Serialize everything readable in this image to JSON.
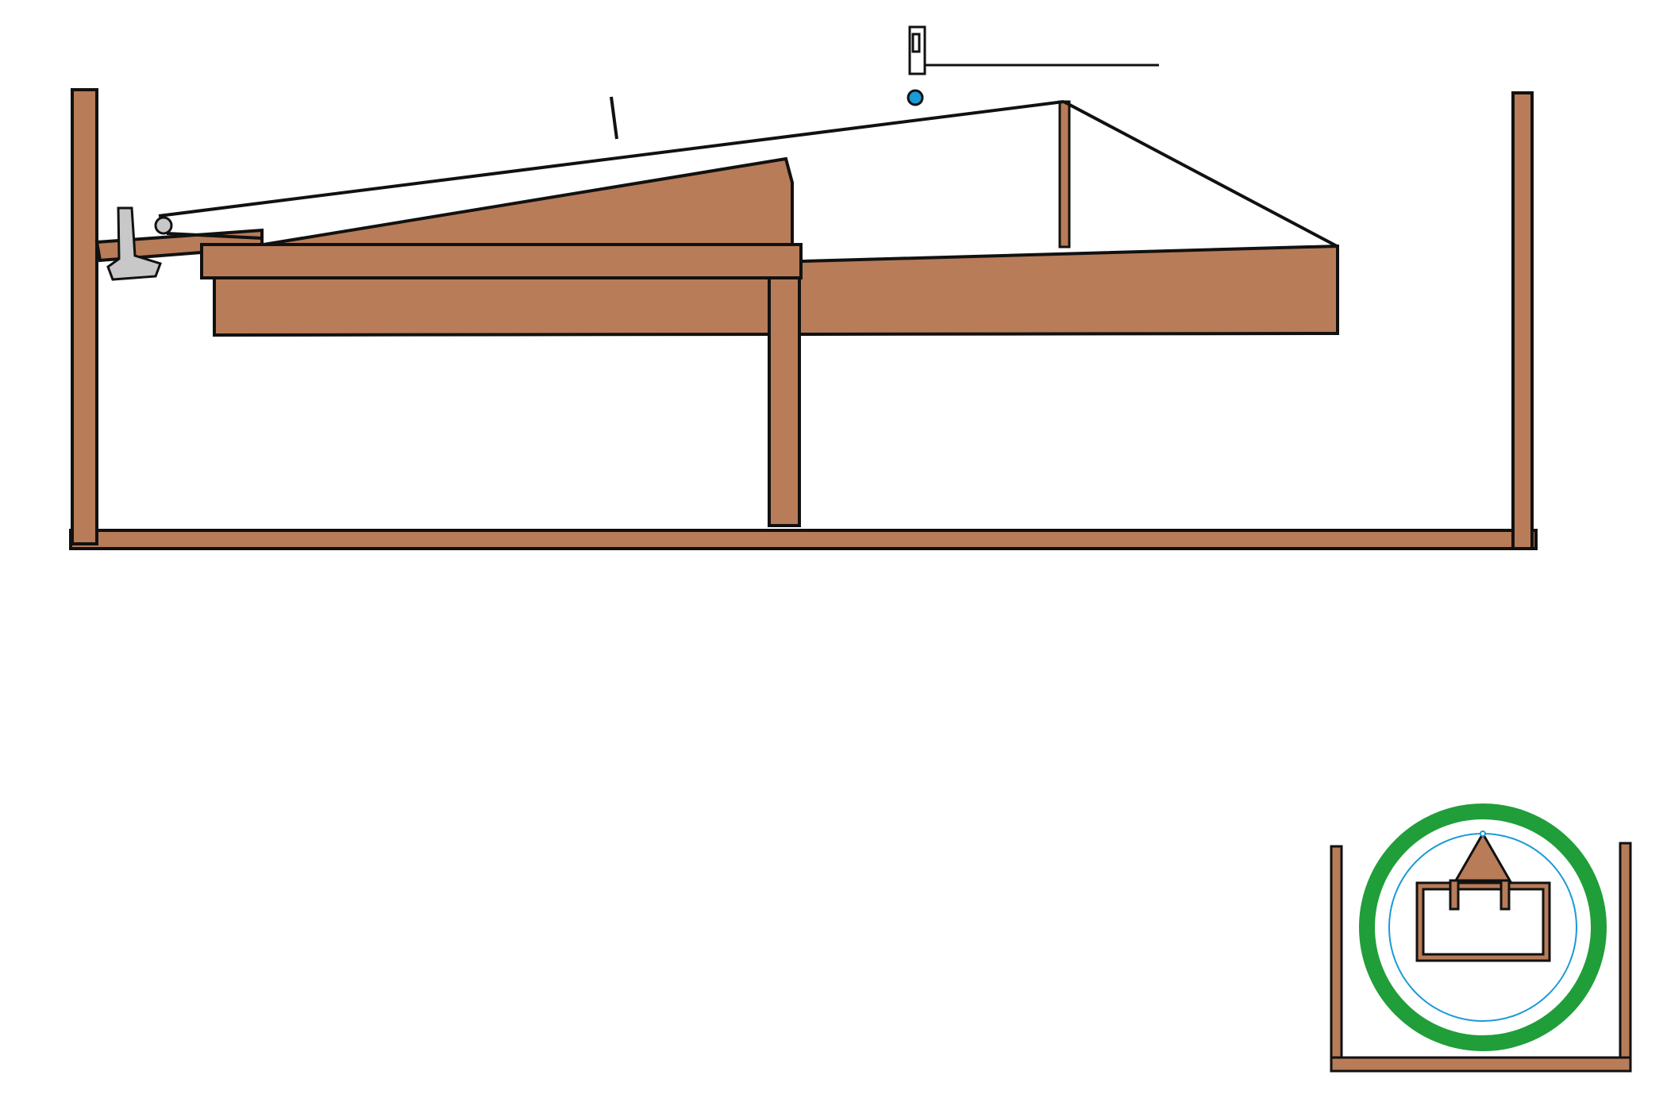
{
  "colors": {
    "wood": "#b87c58",
    "outline": "#111111",
    "metal": "#c8c8c8",
    "ball": "#1a9ad6",
    "ring": "#1f9e3a",
    "inner_ring": "#1a9ad6",
    "background": "#ffffff"
  },
  "side_view": {
    "parts": [
      "left-post",
      "right-post",
      "base-board",
      "slotted-bed-top",
      "slotted-bed-lower",
      "bed-support-leg",
      "tilted-ramp",
      "ramp-lever",
      "t-bracket",
      "pivot-roller",
      "wire-track",
      "wire-support-post",
      "switch-sensor",
      "sensor-lead",
      "ball",
      "tick-mark"
    ]
  },
  "end_view": {
    "parts": [
      "left-post",
      "right-post",
      "base-board",
      "green-ring",
      "blue-ring",
      "box-frame",
      "prism-guide",
      "prism-leg-left",
      "prism-leg-right"
    ]
  }
}
